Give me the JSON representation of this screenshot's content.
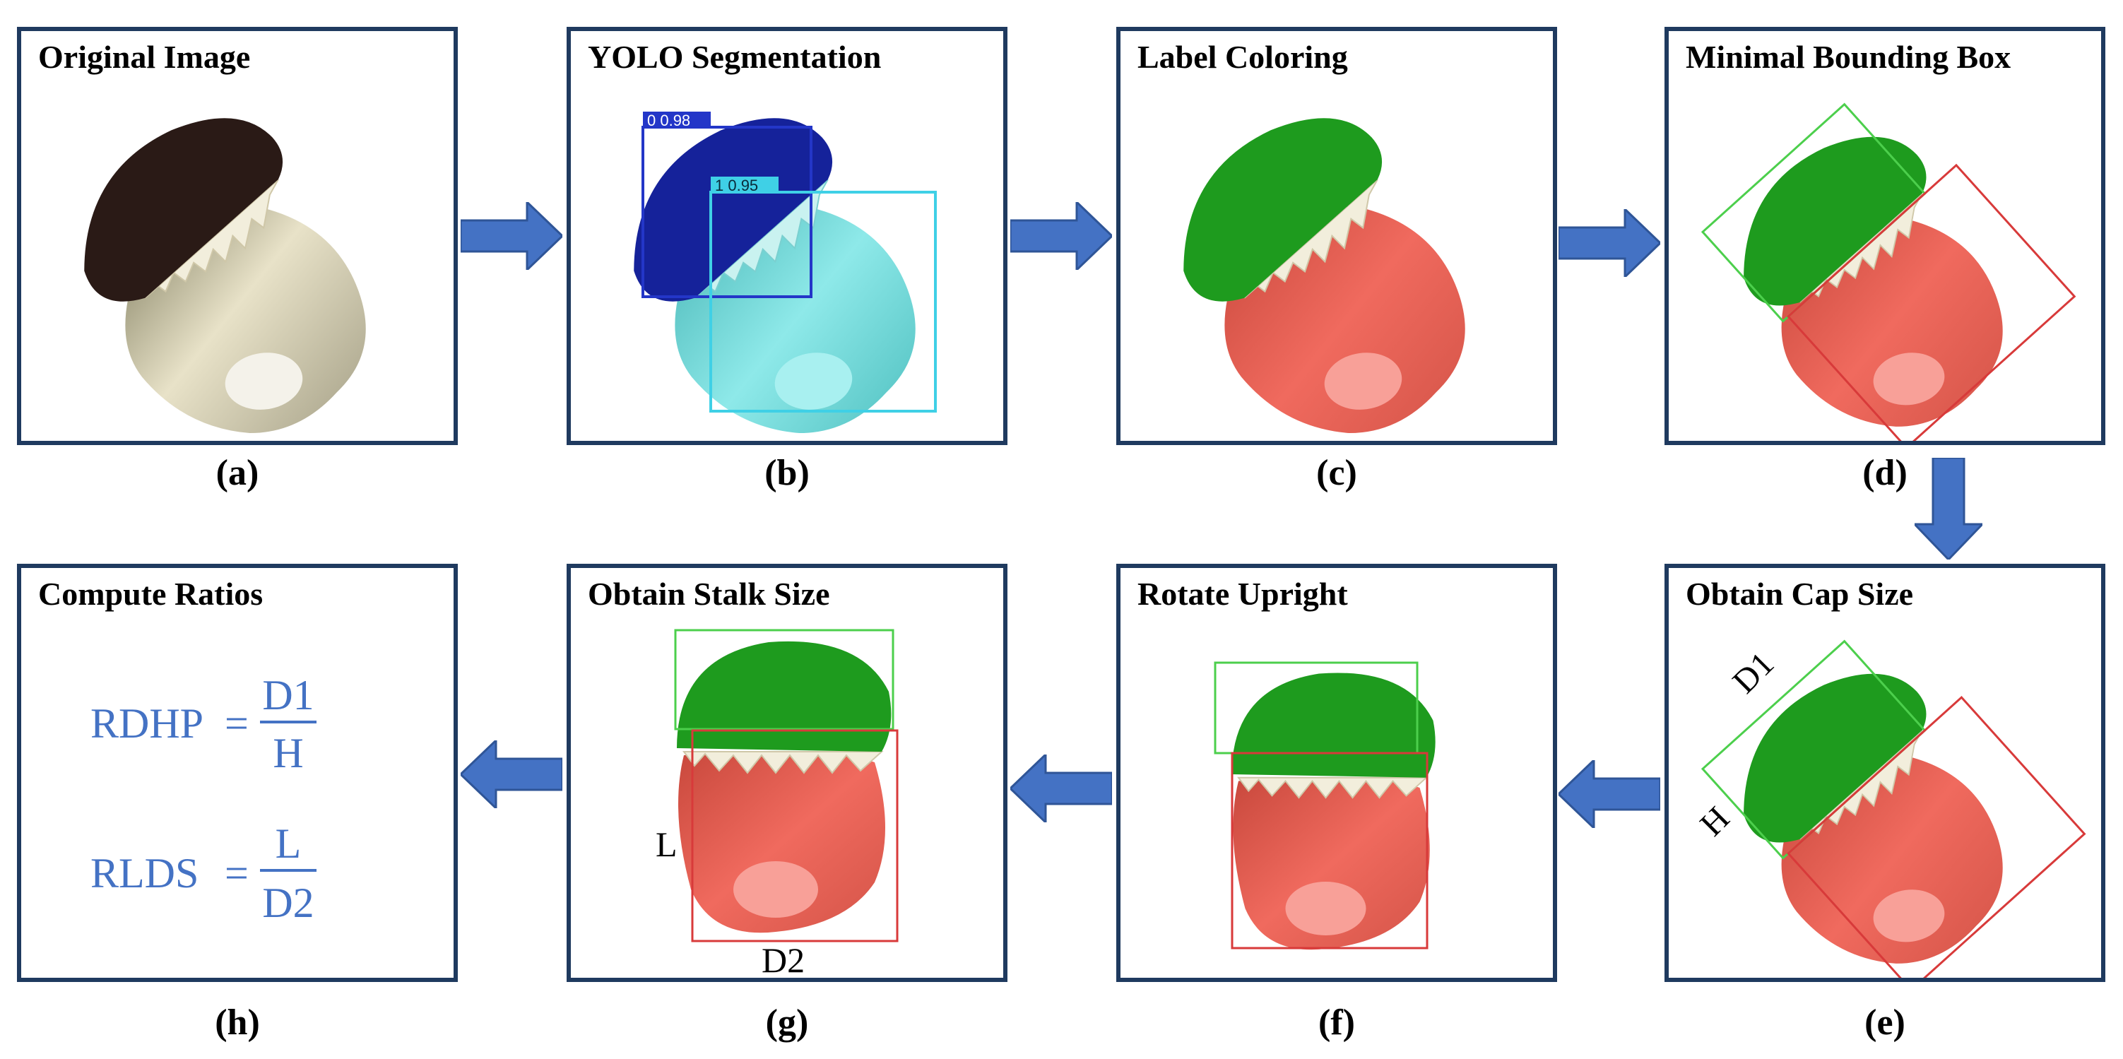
{
  "panels": [
    {
      "id": "a",
      "title": "Original Image",
      "label": "(a)"
    },
    {
      "id": "b",
      "title": "YOLO Segmentation",
      "label": "(b)"
    },
    {
      "id": "c",
      "title": "Label Coloring",
      "label": "(c)"
    },
    {
      "id": "d",
      "title": "Minimal Bounding Box",
      "label": "(d)"
    },
    {
      "id": "e",
      "title": "Obtain Cap Size",
      "label": "(e)"
    },
    {
      "id": "f",
      "title": "Rotate Upright",
      "label": "(f)"
    },
    {
      "id": "g",
      "title": "Obtain Stalk Size",
      "label": "(g)"
    },
    {
      "id": "h",
      "title": "Compute Ratios",
      "label": "(h)"
    }
  ],
  "yolo": {
    "cap_box_label": "0  0.98",
    "stalk_box_label": "1  0.95"
  },
  "cap_size": {
    "d1": "D1",
    "h": "H"
  },
  "stalk_size": {
    "l": "L",
    "d2": "D2"
  },
  "ratios": {
    "rdhp_name": "RDHP",
    "rdhp_num": "D1",
    "rdhp_den": "H",
    "rlds_name": "RLDS",
    "rlds_num": "L",
    "rlds_den": "D2",
    "equals": "="
  },
  "colors": {
    "border": "#1f3a5f",
    "arrow": "#4472c4",
    "cap_green": "#1e9b1e",
    "stalk_red": "#e0554a",
    "cap_dark": "#2a1a16",
    "stalk_cream": "#d8cfae",
    "yolo_blue": "#15229a",
    "yolo_cyan": "#5fd6d6",
    "formula_blue": "#4472c4"
  }
}
